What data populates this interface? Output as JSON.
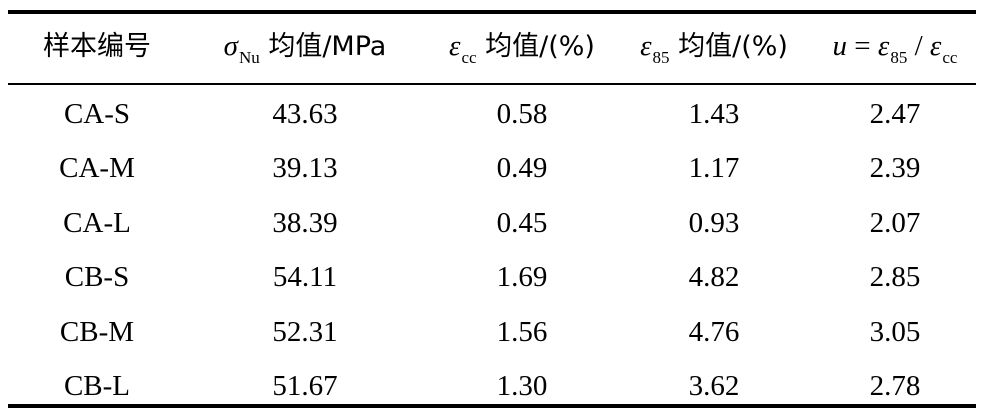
{
  "table": {
    "headers": {
      "sample_no": "样本编号",
      "sigma_symbol": "σ",
      "sigma_sub": "Nu",
      "sigma_label": " 均值/MPa",
      "ecc_symbol": "ε",
      "ecc_sub": "cc",
      "ecc_label": " 均值/(%)",
      "e85_symbol": "ε",
      "e85_sub": "85",
      "e85_label": " 均值/(%)",
      "u_symbol": "u",
      "u_eq": " = ",
      "u_e1": "ε",
      "u_e1_sub": "85",
      "u_slash": " / ",
      "u_e2": "ε",
      "u_e2_sub": "cc"
    },
    "rows": [
      [
        "CA-S",
        "43.63",
        "0.58",
        "1.43",
        "2.47"
      ],
      [
        "CA-M",
        "39.13",
        "0.49",
        "1.17",
        "2.39"
      ],
      [
        "CA-L",
        "38.39",
        "0.45",
        "0.93",
        "2.07"
      ],
      [
        "CB-S",
        "54.11",
        "1.69",
        "4.82",
        "2.85"
      ],
      [
        "CB-M",
        "52.31",
        "1.56",
        "4.76",
        "3.05"
      ],
      [
        "CB-L",
        "51.67",
        "1.30",
        "3.62",
        "2.78"
      ]
    ]
  }
}
